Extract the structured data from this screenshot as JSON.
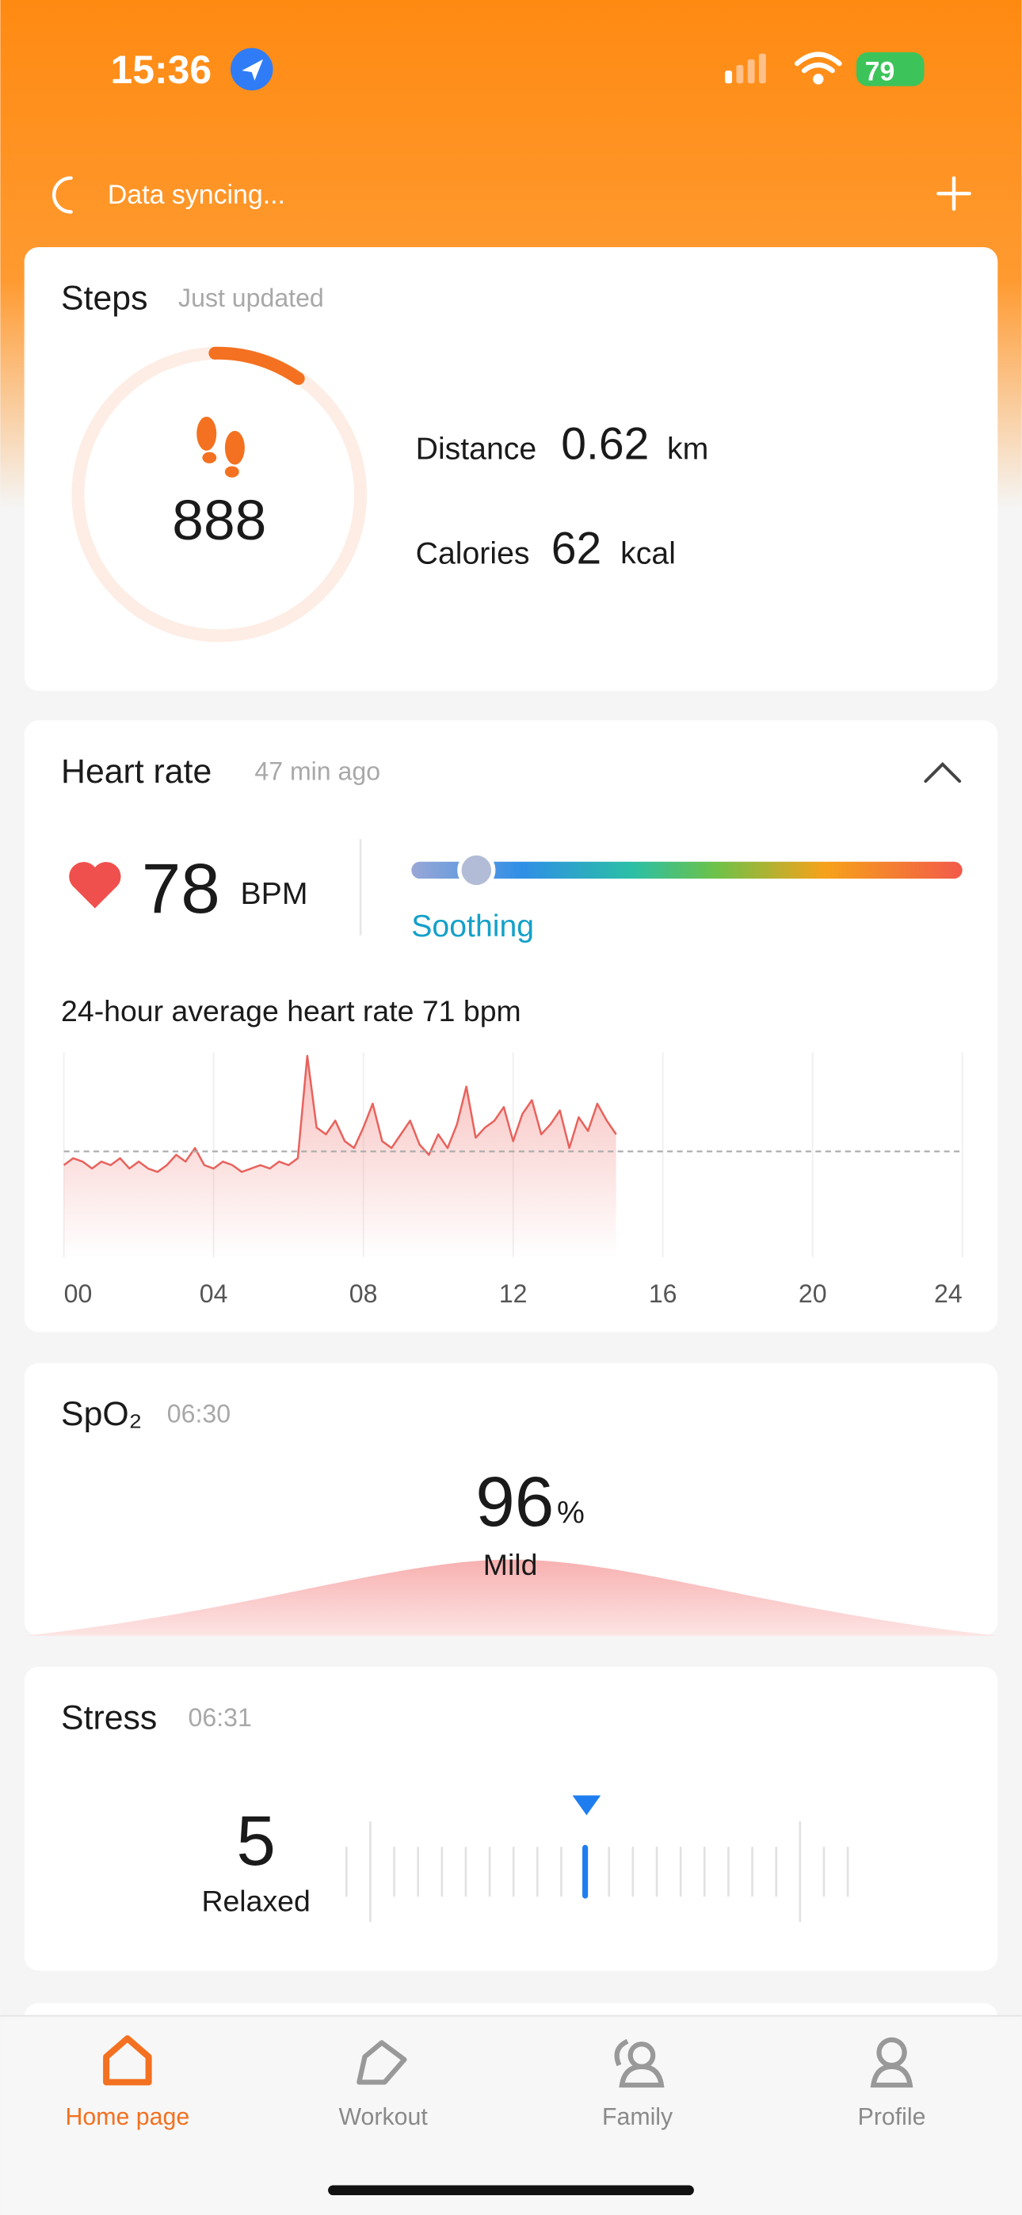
{
  "status_bar": {
    "time": "15:36",
    "battery": "79"
  },
  "header": {
    "sync_text": "Data syncing..."
  },
  "steps": {
    "title": "Steps",
    "updated": "Just updated",
    "count": 888,
    "distance_label": "Distance",
    "distance_value": 0.62,
    "distance_unit": "km",
    "calories_label": "Calories",
    "calories_value": 62,
    "calories_unit": "kcal"
  },
  "heart_rate": {
    "title": "Heart rate",
    "updated": "47 min ago",
    "value": 78,
    "unit": "BPM",
    "zone": "Soothing",
    "average_label": "24-hour average heart rate",
    "average_unit": "bpm",
    "chart_data": {
      "type": "line",
      "average": 71,
      "color": "#e8625c",
      "xlim": [
        0,
        24
      ],
      "ylim": [
        40,
        100
      ],
      "xticks": [
        {
          "value": 0,
          "label": "00"
        },
        {
          "value": 4,
          "label": "04"
        },
        {
          "value": 8,
          "label": "08"
        },
        12,
        16,
        20,
        24
      ],
      "x": [
        0,
        0.25,
        0.5,
        0.75,
        1,
        1.25,
        1.5,
        1.75,
        2,
        2.25,
        2.5,
        2.75,
        3,
        3.25,
        3.5,
        3.75,
        4,
        4.25,
        4.5,
        4.75,
        5,
        5.25,
        5.5,
        5.75,
        6,
        6.25,
        6.5,
        6.75,
        7,
        7.25,
        7.5,
        7.75,
        8,
        8.25,
        8.5,
        8.75,
        9,
        9.25,
        9.5,
        9.75,
        10,
        10.25,
        10.5,
        10.75,
        11,
        11.25,
        11.5,
        11.75,
        12,
        12.25,
        12.5,
        12.75,
        13,
        13.25,
        13.5,
        13.75,
        14,
        14.25,
        14.5,
        14.75
      ],
      "values": [
        67,
        69,
        68,
        66,
        68,
        67,
        69,
        66,
        68,
        66,
        65,
        67,
        70,
        68,
        72,
        67,
        66,
        68,
        67,
        65,
        66,
        67,
        66,
        68,
        67,
        69,
        99,
        78,
        76,
        80,
        74,
        72,
        78,
        85,
        74,
        72,
        76,
        80,
        73,
        70,
        76,
        72,
        79,
        90,
        75,
        78,
        80,
        84,
        74,
        82,
        86,
        76,
        79,
        83,
        72,
        81,
        77,
        85,
        80,
        76
      ]
    }
  },
  "spo2": {
    "title": "SpO₂",
    "time": "06:30",
    "value": 96,
    "unit": "%",
    "status": "Mild"
  },
  "stress": {
    "title": "Stress",
    "time": "06:31",
    "value": 5,
    "status": "Relaxed"
  },
  "nav": {
    "items": [
      "Home page",
      "Workout",
      "Family",
      "Profile"
    ]
  }
}
